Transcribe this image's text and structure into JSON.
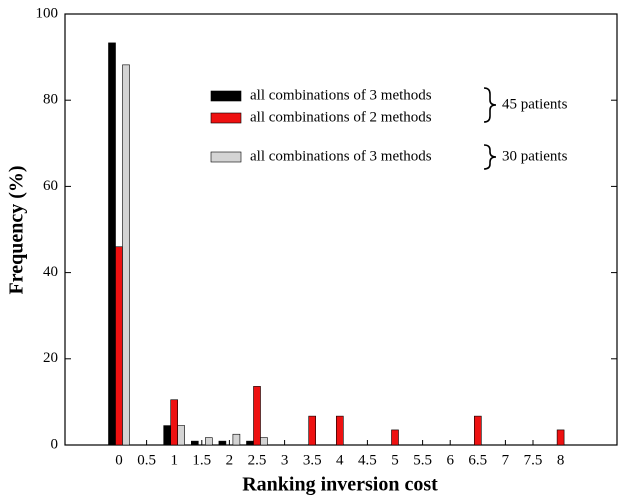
{
  "chart_data": {
    "type": "bar",
    "x_label": "Ranking inversion cost",
    "y_label": "Frequency (%)",
    "categories": [
      "0",
      "0.5",
      "1",
      "1.5",
      "2",
      "2.5",
      "3",
      "3.5",
      "4",
      "4.5",
      "5",
      "5.5",
      "6",
      "6.5",
      "7",
      "7.5",
      "8"
    ],
    "series": [
      {
        "name": "all combinations of 3 methods",
        "color": "#000000",
        "values": [
          93.3,
          0,
          4.5,
          0.9,
          0.9,
          0.9,
          0,
          0,
          0,
          0,
          0,
          0,
          0,
          0,
          0,
          0,
          0
        ]
      },
      {
        "name": "all combinations of 2 methods",
        "color": "#ee1111",
        "values": [
          46,
          0,
          10.5,
          0,
          0,
          13.6,
          0,
          6.7,
          6.7,
          0,
          3.5,
          0,
          0,
          6.7,
          0,
          0,
          3.5
        ]
      },
      {
        "name": "all combinations of 3 methods",
        "color": "#d4d4d4",
        "values": [
          88.2,
          0,
          4.5,
          1.7,
          2.5,
          1.7,
          0,
          0,
          0,
          0,
          0,
          0,
          0,
          0,
          0,
          0,
          0
        ]
      }
    ],
    "annotations": [
      "45 patients",
      "30 patients"
    ],
    "ylim": [
      0,
      100
    ],
    "yticks": [
      0,
      20,
      40,
      60,
      80,
      100
    ]
  }
}
